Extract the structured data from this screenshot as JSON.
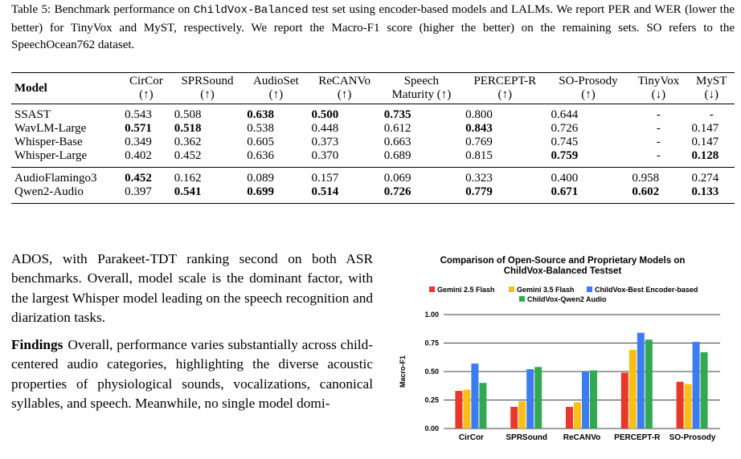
{
  "caption": {
    "part1": "Table 5: Benchmark performance on ",
    "testset": "ChildVox-Balanced",
    "part2": " test set using encoder-based models and LALMs. We report PER and WER (lower the better) for TinyVox and MyST, respectively. We report the Macro-F1 score (higher the better) on the remaining sets. SO refers to the SpeechOcean762 dataset."
  },
  "table": {
    "model_header": "Model",
    "columns": [
      {
        "name": "CirCor",
        "dir": "(↑)"
      },
      {
        "name": "SPRSound",
        "dir": "(↑)"
      },
      {
        "name": "AudioSet",
        "dir": "(↑)"
      },
      {
        "name": "ReCANVo",
        "dir": "(↑)"
      },
      {
        "name": "Speech",
        "name2": "Maturity (↑)"
      },
      {
        "name": "PERCEPT-R",
        "dir": "(↑)"
      },
      {
        "name": "SO-Prosody",
        "dir": "(↑)"
      },
      {
        "name": "TinyVox",
        "dir": "(↓)"
      },
      {
        "name": "MyST",
        "dir": "(↓)"
      }
    ],
    "group1": [
      {
        "model": "SSAST",
        "cells": [
          {
            "v": "0.543",
            "b": false
          },
          {
            "v": "0.508",
            "b": false
          },
          {
            "v": "0.638",
            "b": true
          },
          {
            "v": "0.500",
            "b": true
          },
          {
            "v": "0.735",
            "b": true
          },
          {
            "v": "0.800",
            "b": false
          },
          {
            "v": "0.644",
            "b": false
          },
          {
            "v": "-",
            "b": false
          },
          {
            "v": "-",
            "b": false
          }
        ]
      },
      {
        "model": "WavLM-Large",
        "cells": [
          {
            "v": "0.571",
            "b": true
          },
          {
            "v": "0.518",
            "b": true
          },
          {
            "v": "0.538",
            "b": false
          },
          {
            "v": "0.448",
            "b": false
          },
          {
            "v": "0.612",
            "b": false
          },
          {
            "v": "0.843",
            "b": true
          },
          {
            "v": "0.726",
            "b": false
          },
          {
            "v": "-",
            "b": false
          },
          {
            "v": "0.147",
            "b": false
          }
        ]
      },
      {
        "model": "Whisper-Base",
        "cells": [
          {
            "v": "0.349",
            "b": false
          },
          {
            "v": "0.362",
            "b": false
          },
          {
            "v": "0.605",
            "b": false
          },
          {
            "v": "0.373",
            "b": false
          },
          {
            "v": "0.663",
            "b": false
          },
          {
            "v": "0.769",
            "b": false
          },
          {
            "v": "0.745",
            "b": false
          },
          {
            "v": "-",
            "b": false
          },
          {
            "v": "0.147",
            "b": false
          }
        ]
      },
      {
        "model": "Whisper-Large",
        "cells": [
          {
            "v": "0.402",
            "b": false
          },
          {
            "v": "0.452",
            "b": false
          },
          {
            "v": "0.636",
            "b": false
          },
          {
            "v": "0.370",
            "b": false
          },
          {
            "v": "0.689",
            "b": false
          },
          {
            "v": "0.815",
            "b": false
          },
          {
            "v": "0.759",
            "b": true
          },
          {
            "v": "-",
            "b": false
          },
          {
            "v": "0.128",
            "b": true
          }
        ]
      }
    ],
    "group2": [
      {
        "model": "AudioFlamingo3",
        "cells": [
          {
            "v": "0.452",
            "b": true
          },
          {
            "v": "0.162",
            "b": false
          },
          {
            "v": "0.089",
            "b": false
          },
          {
            "v": "0.157",
            "b": false
          },
          {
            "v": "0.069",
            "b": false
          },
          {
            "v": "0.323",
            "b": false
          },
          {
            "v": "0.400",
            "b": false
          },
          {
            "v": "0.958",
            "b": false
          },
          {
            "v": "0.274",
            "b": false
          }
        ]
      },
      {
        "model": "Qwen2-Audio",
        "cells": [
          {
            "v": "0.397",
            "b": false
          },
          {
            "v": "0.541",
            "b": true
          },
          {
            "v": "0.699",
            "b": true
          },
          {
            "v": "0.514",
            "b": true
          },
          {
            "v": "0.726",
            "b": true
          },
          {
            "v": "0.779",
            "b": true
          },
          {
            "v": "0.671",
            "b": true
          },
          {
            "v": "0.602",
            "b": true
          },
          {
            "v": "0.133",
            "b": true
          }
        ]
      }
    ]
  },
  "body": {
    "para1": "ADOS, with Parakeet-TDT ranking second on both ASR benchmarks. Overall, model scale is the dominant factor, with the largest Whisper model leading on the speech recognition and diarization tasks.",
    "findings_heading": "Findings",
    "para2": "Overall, performance varies substantially across child-centered audio categories, highlighting the diverse acoustic properties of physiological sounds, vocalizations, canonical syllables, and speech. Meanwhile, no single model domi-"
  },
  "chart_data": {
    "type": "bar",
    "title": "Comparison of Open-Source and Proprietary Models on ChildVox-Balanced Testset",
    "title_lines": [
      "Comparison of Open-Source and Proprietary Models on",
      "ChildVox-Balanced Testset"
    ],
    "ylabel": "Macro-F1",
    "xlabel": "",
    "ylim": [
      0,
      1.0
    ],
    "yticks": [
      "0.00",
      "0.25",
      "0.50",
      "0.75",
      "1.00"
    ],
    "grid": true,
    "legend_position": "top",
    "categories": [
      "CirCor",
      "SPRSound",
      "ReCANVo",
      "PERCEPT-R",
      "SO-Prosody"
    ],
    "series": [
      {
        "name": "Gemini 2.5 Flash",
        "color": "#e8372c",
        "values": [
          0.33,
          0.19,
          0.19,
          0.49,
          0.41
        ]
      },
      {
        "name": "Gemini 3.5 Flash",
        "color": "#f9bf17",
        "values": [
          0.34,
          0.24,
          0.23,
          0.69,
          0.39
        ]
      },
      {
        "name": "ChildVox-Best Encoder-based",
        "color": "#3b7cf0",
        "values": [
          0.57,
          0.52,
          0.5,
          0.84,
          0.76
        ]
      },
      {
        "name": "ChildVox-Qwen2 Audio",
        "color": "#33a852",
        "values": [
          0.4,
          0.54,
          0.51,
          0.78,
          0.67
        ]
      }
    ]
  }
}
